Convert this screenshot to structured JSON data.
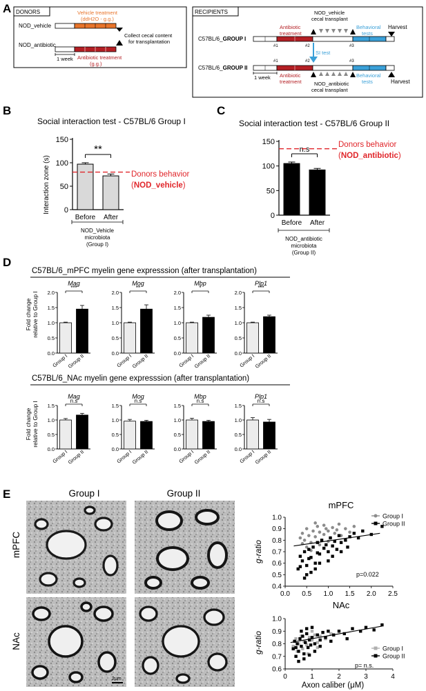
{
  "colors": {
    "red": "#b41f24",
    "orange": "#e8742a",
    "blue": "#3aa0d8",
    "dashed_red": "#e0252a",
    "gray_bar": "#d9d9d9",
    "black": "#000000",
    "scatter_gray": "#8c8c8c",
    "scatter_light": "#b0b0b0"
  },
  "panelA": {
    "letter": "A",
    "donors": {
      "title": "DONORS",
      "vehicle_label": "NOD_vehicle",
      "antibiotic_label": "NOD_antibiotic",
      "vehicle_treatment": "Vehicle treatment",
      "vehicle_sub": "(ddH2O - g.g.)",
      "antibiotic_treatment": "Antibiotic treatment",
      "antibiotic_sub": "(g.g.)",
      "collect1": "Collect cecal content",
      "collect2": "for transplantation",
      "week": "1 week"
    },
    "recipients": {
      "title": "RECIPIENTS",
      "group1_prefix": "C57BL/6_",
      "group1_bold": "GROUP I",
      "group2_prefix": "C57BL/6_",
      "group2_bold": "GROUP II",
      "nod_vehicle_transplant1": "NOD_vehicle",
      "nod_vehicle_transplant2": "cecal transplant",
      "nod_antibiotic_transplant1": "NOD_antibiotic",
      "nod_antibiotic_transplant2": "cecal transplant",
      "antibiotic1": "Antibiotic",
      "antibiotic2": "treatment",
      "behavioral1": "Behavioral",
      "behavioral2": "tests",
      "harvest": "Harvest",
      "si_test": "SI test",
      "m1": "#1",
      "m2": "#2",
      "m3": "#3",
      "week": "1 week"
    }
  },
  "panelB": {
    "letter": "B",
    "donor_text1": "Donors behavior",
    "donor_text2_open": "(",
    "donor_text2_bold": "NOD_vehicle",
    "donor_text2_close": ")",
    "group_line1": "NOD_Vehicle",
    "group_line2": "microbiota",
    "group_line3": "(Group I)",
    "significance": "**"
  },
  "panelC": {
    "letter": "C",
    "donor_text1": "Donors behavior",
    "donor_text2_open": "(",
    "donor_text2_bold": "NOD_antibiotic",
    "donor_text2_close": ")",
    "group_line1": "NOD_antibiotic",
    "group_line2": "microbiota",
    "group_line3": "(Group II)",
    "significance": "n.s"
  },
  "panelD": {
    "letter": "D",
    "title_mpfc": "C57BL/6_mPFC myelin gene expresssion (after transplantation)",
    "title_nac": "C57BL/6_NAc myelin gene expresssion (after transplantation)"
  },
  "panelE": {
    "letter": "E",
    "col1": "Group I",
    "col2": "Group II",
    "row1": "mPFC",
    "row2": "NAc",
    "scalebar": "2μm"
  },
  "chart_data": [
    {
      "id": "B",
      "type": "bar",
      "title": "Social interaction test - C57BL/6 Group I",
      "ylabel": "Interaction zone (s)",
      "categories": [
        "Before",
        "After"
      ],
      "values": [
        97,
        72
      ],
      "errors": [
        3,
        4
      ],
      "ylim": [
        0,
        150
      ],
      "yticks": [
        0,
        50,
        100,
        150
      ],
      "reference_line": 80,
      "bar_colors": [
        "#d9d9d9",
        "#d9d9d9"
      ]
    },
    {
      "id": "C",
      "type": "bar",
      "title": "Social interaction test - C57BL/6 Group II",
      "ylabel": "",
      "categories": [
        "Before",
        "After"
      ],
      "values": [
        105,
        92
      ],
      "errors": [
        3,
        3
      ],
      "ylim": [
        0,
        150
      ],
      "yticks": [
        0,
        50,
        100,
        150
      ],
      "reference_line": 135,
      "bar_colors": [
        "#000000",
        "#000000"
      ]
    },
    {
      "id": "D-mPFC",
      "type": "bar",
      "region": "mPFC",
      "ylabel": "Fold change relative to Group I",
      "categories": [
        "Group I",
        "Group II"
      ],
      "ylim": [
        0,
        2.0
      ],
      "yticks": [
        "0.0",
        "0.5",
        "1.0",
        "1.5",
        "2.0"
      ],
      "series": [
        {
          "name": "Mag",
          "values": [
            1.0,
            1.45
          ],
          "errors": [
            0.02,
            0.12
          ],
          "sig": "***"
        },
        {
          "name": "Mog",
          "values": [
            1.0,
            1.45
          ],
          "errors": [
            0.02,
            0.14
          ],
          "sig": "**"
        },
        {
          "name": "Mbp",
          "values": [
            1.0,
            1.18
          ],
          "errors": [
            0.02,
            0.07
          ],
          "sig": "*"
        },
        {
          "name": "Plp1",
          "values": [
            1.0,
            1.2
          ],
          "errors": [
            0.02,
            0.05
          ],
          "sig": "***"
        }
      ]
    },
    {
      "id": "D-NAc",
      "type": "bar",
      "region": "NAc",
      "ylabel": "Fold change relative to Group I",
      "categories": [
        "Group I",
        "Group II"
      ],
      "ylim": [
        0,
        1.5
      ],
      "yticks": [
        "0.0",
        "0.5",
        "1.0",
        "1.5"
      ],
      "series": [
        {
          "name": "Mag",
          "values": [
            1.0,
            1.17
          ],
          "errors": [
            0.05,
            0.06
          ],
          "sig": "n.s"
        },
        {
          "name": "Mog",
          "values": [
            0.96,
            0.95
          ],
          "errors": [
            0.06,
            0.04
          ],
          "sig": "n.s"
        },
        {
          "name": "Mbp",
          "values": [
            1.0,
            0.95
          ],
          "errors": [
            0.06,
            0.04
          ],
          "sig": "n.s"
        },
        {
          "name": "Plp1",
          "values": [
            1.0,
            0.93
          ],
          "errors": [
            0.08,
            0.09
          ],
          "sig": "n.s"
        }
      ]
    },
    {
      "id": "E-mPFC",
      "type": "scatter",
      "title": "mPFC",
      "ylabel": "g-ratio",
      "xlabel": "",
      "xlim": [
        0,
        2.5
      ],
      "ylim": [
        0.4,
        1.0
      ],
      "xticks": [
        "0.0",
        "0.5",
        "1.0",
        "1.5",
        "2.0",
        "2.5"
      ],
      "yticks": [
        "0.4",
        "0.5",
        "0.6",
        "0.7",
        "0.8",
        "0.9",
        "1.0"
      ],
      "legend": [
        "Group I",
        "Group II"
      ],
      "annotation": "p=0.022",
      "fit_lines": [
        {
          "x": [
            0.2,
            2.2
          ],
          "y": [
            0.75,
            0.86
          ]
        }
      ],
      "series": [
        {
          "name": "Group I",
          "points": [
            [
              0.35,
              0.82
            ],
            [
              0.4,
              0.86
            ],
            [
              0.45,
              0.8
            ],
            [
              0.5,
              0.9
            ],
            [
              0.55,
              0.84
            ],
            [
              0.6,
              0.78
            ],
            [
              0.65,
              0.88
            ],
            [
              0.7,
              0.83
            ],
            [
              0.75,
              0.92
            ],
            [
              0.8,
              0.87
            ],
            [
              0.85,
              0.8
            ],
            [
              0.9,
              0.85
            ],
            [
              0.95,
              0.9
            ],
            [
              1.0,
              0.88
            ],
            [
              1.05,
              0.82
            ],
            [
              1.1,
              0.91
            ],
            [
              1.15,
              0.86
            ],
            [
              1.2,
              0.89
            ],
            [
              1.3,
              0.84
            ],
            [
              1.4,
              0.9
            ],
            [
              1.5,
              0.87
            ],
            [
              1.6,
              0.92
            ],
            [
              0.5,
              0.74
            ],
            [
              0.6,
              0.71
            ],
            [
              0.8,
              0.76
            ],
            [
              1.0,
              0.79
            ],
            [
              0.4,
              0.77
            ],
            [
              0.7,
              0.95
            ],
            [
              0.9,
              0.93
            ],
            [
              1.25,
              0.94
            ]
          ]
        },
        {
          "name": "Group II",
          "points": [
            [
              0.3,
              0.55
            ],
            [
              0.35,
              0.66
            ],
            [
              0.4,
              0.62
            ],
            [
              0.45,
              0.7
            ],
            [
              0.5,
              0.58
            ],
            [
              0.55,
              0.72
            ],
            [
              0.6,
              0.65
            ],
            [
              0.65,
              0.74
            ],
            [
              0.7,
              0.6
            ],
            [
              0.75,
              0.78
            ],
            [
              0.8,
              0.68
            ],
            [
              0.85,
              0.8
            ],
            [
              0.9,
              0.73
            ],
            [
              0.95,
              0.76
            ],
            [
              1.0,
              0.7
            ],
            [
              1.05,
              0.82
            ],
            [
              1.1,
              0.75
            ],
            [
              1.15,
              0.79
            ],
            [
              1.2,
              0.72
            ],
            [
              1.25,
              0.84
            ],
            [
              1.3,
              0.78
            ],
            [
              1.4,
              0.8
            ],
            [
              1.5,
              0.83
            ],
            [
              1.6,
              0.86
            ],
            [
              1.7,
              0.82
            ],
            [
              1.8,
              0.88
            ],
            [
              2.0,
              0.85
            ],
            [
              2.25,
              0.92
            ],
            [
              0.5,
              0.5
            ],
            [
              0.45,
              0.47
            ],
            [
              0.6,
              0.52
            ],
            [
              0.7,
              0.55
            ],
            [
              0.8,
              0.6
            ],
            [
              1.0,
              0.62
            ],
            [
              1.1,
              0.66
            ],
            [
              1.3,
              0.7
            ],
            [
              1.45,
              0.74
            ],
            [
              0.35,
              0.57
            ],
            [
              0.55,
              0.64
            ],
            [
              0.75,
              0.69
            ]
          ]
        }
      ]
    },
    {
      "id": "E-NAc",
      "type": "scatter",
      "title": "NAc",
      "ylabel": "g-ratio",
      "xlabel": "Axon caliber (μM)",
      "xlim": [
        0,
        4
      ],
      "ylim": [
        0.6,
        1.0
      ],
      "xticks": [
        "0",
        "1",
        "2",
        "3",
        "4"
      ],
      "yticks": [
        "0.6",
        "0.7",
        "0.8",
        "0.9",
        "1.0"
      ],
      "legend": [
        "Group I",
        "Group II"
      ],
      "annotation": "p= n.s.",
      "fit_lines": [
        {
          "x": [
            0.2,
            3.6
          ],
          "y": [
            0.81,
            0.94
          ]
        }
      ],
      "series": [
        {
          "name": "Group I",
          "points": [
            [
              0.3,
              0.78
            ],
            [
              0.4,
              0.84
            ],
            [
              0.5,
              0.8
            ],
            [
              0.6,
              0.86
            ],
            [
              0.7,
              0.82
            ],
            [
              0.8,
              0.79
            ],
            [
              0.9,
              0.85
            ],
            [
              1.0,
              0.83
            ],
            [
              1.1,
              0.87
            ],
            [
              1.2,
              0.81
            ],
            [
              1.3,
              0.86
            ],
            [
              1.5,
              0.84
            ],
            [
              1.7,
              0.88
            ],
            [
              0.45,
              0.74
            ],
            [
              0.65,
              0.76
            ],
            [
              0.85,
              0.72
            ],
            [
              1.0,
              0.9
            ],
            [
              1.2,
              0.77
            ]
          ]
        },
        {
          "name": "Group II",
          "points": [
            [
              0.3,
              0.76
            ],
            [
              0.35,
              0.82
            ],
            [
              0.4,
              0.7
            ],
            [
              0.45,
              0.8
            ],
            [
              0.5,
              0.74
            ],
            [
              0.55,
              0.84
            ],
            [
              0.6,
              0.78
            ],
            [
              0.65,
              0.86
            ],
            [
              0.7,
              0.72
            ],
            [
              0.75,
              0.81
            ],
            [
              0.8,
              0.88
            ],
            [
              0.85,
              0.77
            ],
            [
              0.9,
              0.83
            ],
            [
              0.95,
              0.79
            ],
            [
              1.0,
              0.85
            ],
            [
              1.1,
              0.8
            ],
            [
              1.2,
              0.87
            ],
            [
              1.3,
              0.83
            ],
            [
              1.4,
              0.89
            ],
            [
              1.5,
              0.85
            ],
            [
              1.6,
              0.9
            ],
            [
              1.8,
              0.87
            ],
            [
              2.0,
              0.9
            ],
            [
              2.2,
              0.88
            ],
            [
              2.5,
              0.92
            ],
            [
              2.8,
              0.9
            ],
            [
              3.0,
              0.93
            ],
            [
              3.3,
              0.91
            ],
            [
              3.6,
              0.95
            ],
            [
              0.5,
              0.66
            ],
            [
              0.7,
              0.68
            ],
            [
              0.9,
              0.71
            ],
            [
              1.1,
              0.74
            ],
            [
              0.6,
              0.9
            ],
            [
              0.8,
              0.92
            ],
            [
              1.0,
              0.93
            ],
            [
              0.4,
              0.77
            ],
            [
              1.3,
              0.78
            ],
            [
              1.7,
              0.82
            ],
            [
              2.3,
              0.84
            ]
          ]
        }
      ]
    }
  ]
}
